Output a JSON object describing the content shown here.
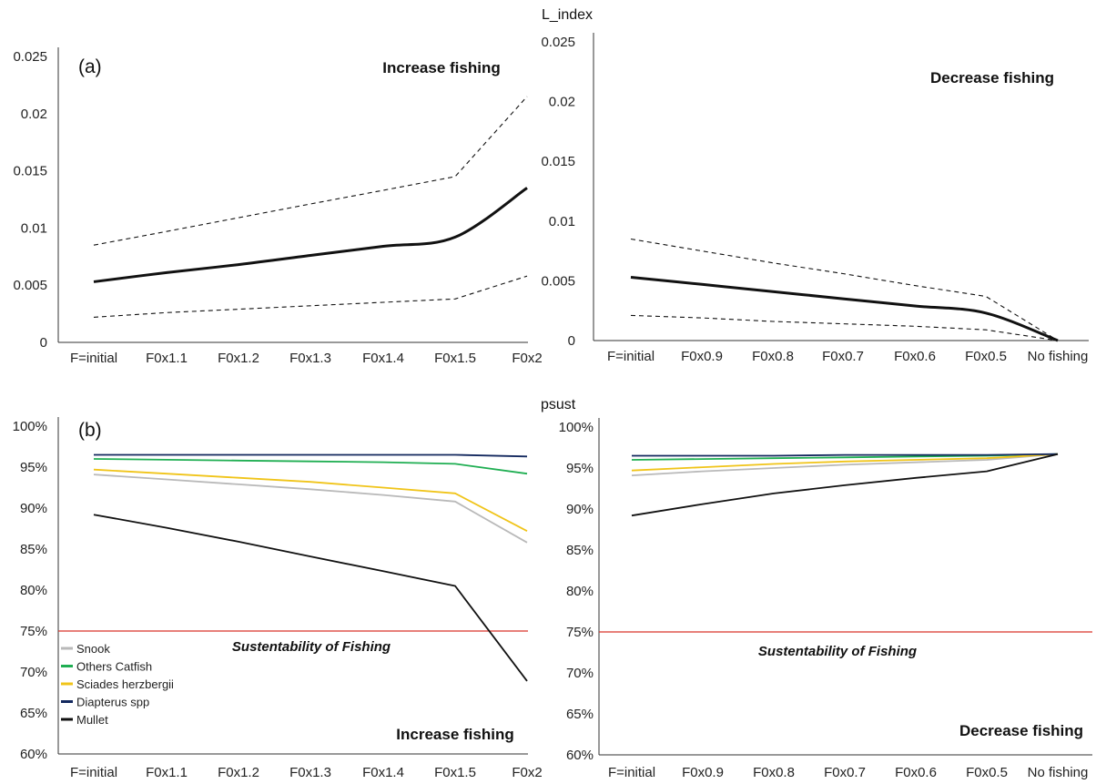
{
  "colors": {
    "snook": "#b9b9b9",
    "others_catfish": "#1fae52",
    "sciades": "#f0c419",
    "diapterus": "#13285e",
    "mullet": "#111111",
    "threshold": "#d9342b"
  },
  "labels": {
    "l_index": "L_index",
    "psust": "psust"
  },
  "chart_data": [
    {
      "id": "a_increase",
      "type": "line",
      "panel_label": "(a)",
      "title": "Increase fishing",
      "categories": [
        "F=initial",
        "F0x1.1",
        "F0x1.2",
        "F0x1.3",
        "F0x1.4",
        "F0x1.5",
        "F0x2"
      ],
      "ylim": [
        0,
        0.025
      ],
      "yticks": [
        0,
        0.005,
        0.01,
        0.015,
        0.02,
        0.025
      ],
      "ytick_labels": [
        "0",
        "0.005",
        "0.01",
        "0.015",
        "0.02",
        "0.025"
      ],
      "series": [
        {
          "style": "dashed",
          "values": [
            0.0085,
            0.0097,
            0.0109,
            0.0121,
            0.0133,
            0.0145,
            0.0215
          ]
        },
        {
          "style": "solid",
          "values": [
            0.0053,
            0.0061,
            0.0068,
            0.0076,
            0.0084,
            0.0092,
            0.0135
          ]
        },
        {
          "style": "dashed",
          "values": [
            0.0022,
            0.0026,
            0.0029,
            0.0032,
            0.0035,
            0.0038,
            0.0058
          ]
        }
      ]
    },
    {
      "id": "a_decrease",
      "type": "line",
      "title": "Decrease fishing",
      "categories": [
        "F=initial",
        "F0x0.9",
        "F0x0.8",
        "F0x0.7",
        "F0x0.6",
        "F0x0.5",
        "No fishing"
      ],
      "ylim": [
        0,
        0.025
      ],
      "yticks": [
        0,
        0.005,
        0.01,
        0.015,
        0.02,
        0.025
      ],
      "ytick_labels": [
        "0",
        "0.005",
        "0.01",
        "0.015",
        "0.02",
        "0.025"
      ],
      "series": [
        {
          "style": "dashed",
          "values": [
            0.0085,
            0.0075,
            0.0065,
            0.0056,
            0.0046,
            0.0037,
            0.0
          ]
        },
        {
          "style": "solid",
          "values": [
            0.0053,
            0.0047,
            0.0041,
            0.0035,
            0.0029,
            0.0023,
            0.0
          ]
        },
        {
          "style": "dashed",
          "values": [
            0.0021,
            0.0019,
            0.0016,
            0.0014,
            0.0012,
            0.0009,
            0.0
          ]
        }
      ]
    },
    {
      "id": "b_increase",
      "type": "line",
      "panel_label": "(b)",
      "title": "Increase fishing",
      "annotation": "Sustentability of Fishing",
      "categories": [
        "F=initial",
        "F0x1.1",
        "F0x1.2",
        "F0x1.3",
        "F0x1.4",
        "F0x1.5",
        "F0x2"
      ],
      "ylim": [
        60,
        100
      ],
      "yticks": [
        60,
        65,
        70,
        75,
        80,
        85,
        90,
        95,
        100
      ],
      "ytick_labels": [
        "60%",
        "65%",
        "70%",
        "75%",
        "80%",
        "85%",
        "90%",
        "95%",
        "100%"
      ],
      "threshold": 75,
      "legend_position": "bottom-left",
      "series": [
        {
          "name": "Snook",
          "color_key": "snook",
          "values": [
            94.1,
            93.5,
            92.9,
            92.3,
            91.6,
            90.8,
            85.8
          ]
        },
        {
          "name": "Others Catfish",
          "color_key": "others_catfish",
          "values": [
            96.0,
            95.9,
            95.8,
            95.7,
            95.6,
            95.4,
            94.2
          ]
        },
        {
          "name": "Sciades herzbergii",
          "color_key": "sciades",
          "values": [
            94.7,
            94.2,
            93.7,
            93.2,
            92.5,
            91.8,
            87.2
          ]
        },
        {
          "name": "Diapterus spp",
          "color_key": "diapterus",
          "values": [
            96.5,
            96.5,
            96.5,
            96.5,
            96.5,
            96.5,
            96.3
          ]
        },
        {
          "name": "Mullet",
          "color_key": "mullet",
          "values": [
            89.2,
            87.6,
            85.9,
            84.1,
            82.3,
            80.5,
            68.9
          ]
        }
      ]
    },
    {
      "id": "b_decrease",
      "type": "line",
      "title": "Decrease fishing",
      "annotation": "Sustentability of Fishing",
      "categories": [
        "F=initial",
        "F0x0.9",
        "F0x0.8",
        "F0x0.7",
        "F0x0.6",
        "F0x0.5",
        "No fishing"
      ],
      "ylim": [
        60,
        100
      ],
      "yticks": [
        60,
        65,
        70,
        75,
        80,
        85,
        90,
        95,
        100
      ],
      "ytick_labels": [
        "60%",
        "65%",
        "70%",
        "75%",
        "80%",
        "85%",
        "90%",
        "95%",
        "100%"
      ],
      "threshold": 75,
      "series": [
        {
          "color_key": "snook",
          "values": [
            94.1,
            94.6,
            95.0,
            95.4,
            95.7,
            96.0,
            96.7
          ]
        },
        {
          "color_key": "others_catfish",
          "values": [
            96.0,
            96.1,
            96.2,
            96.3,
            96.4,
            96.5,
            96.7
          ]
        },
        {
          "color_key": "sciades",
          "values": [
            94.7,
            95.1,
            95.5,
            95.8,
            96.0,
            96.2,
            96.7
          ]
        },
        {
          "color_key": "diapterus",
          "values": [
            96.5,
            96.5,
            96.5,
            96.6,
            96.6,
            96.6,
            96.7
          ]
        },
        {
          "color_key": "mullet",
          "values": [
            89.2,
            90.6,
            91.9,
            92.9,
            93.8,
            94.6,
            96.7
          ]
        }
      ]
    }
  ]
}
